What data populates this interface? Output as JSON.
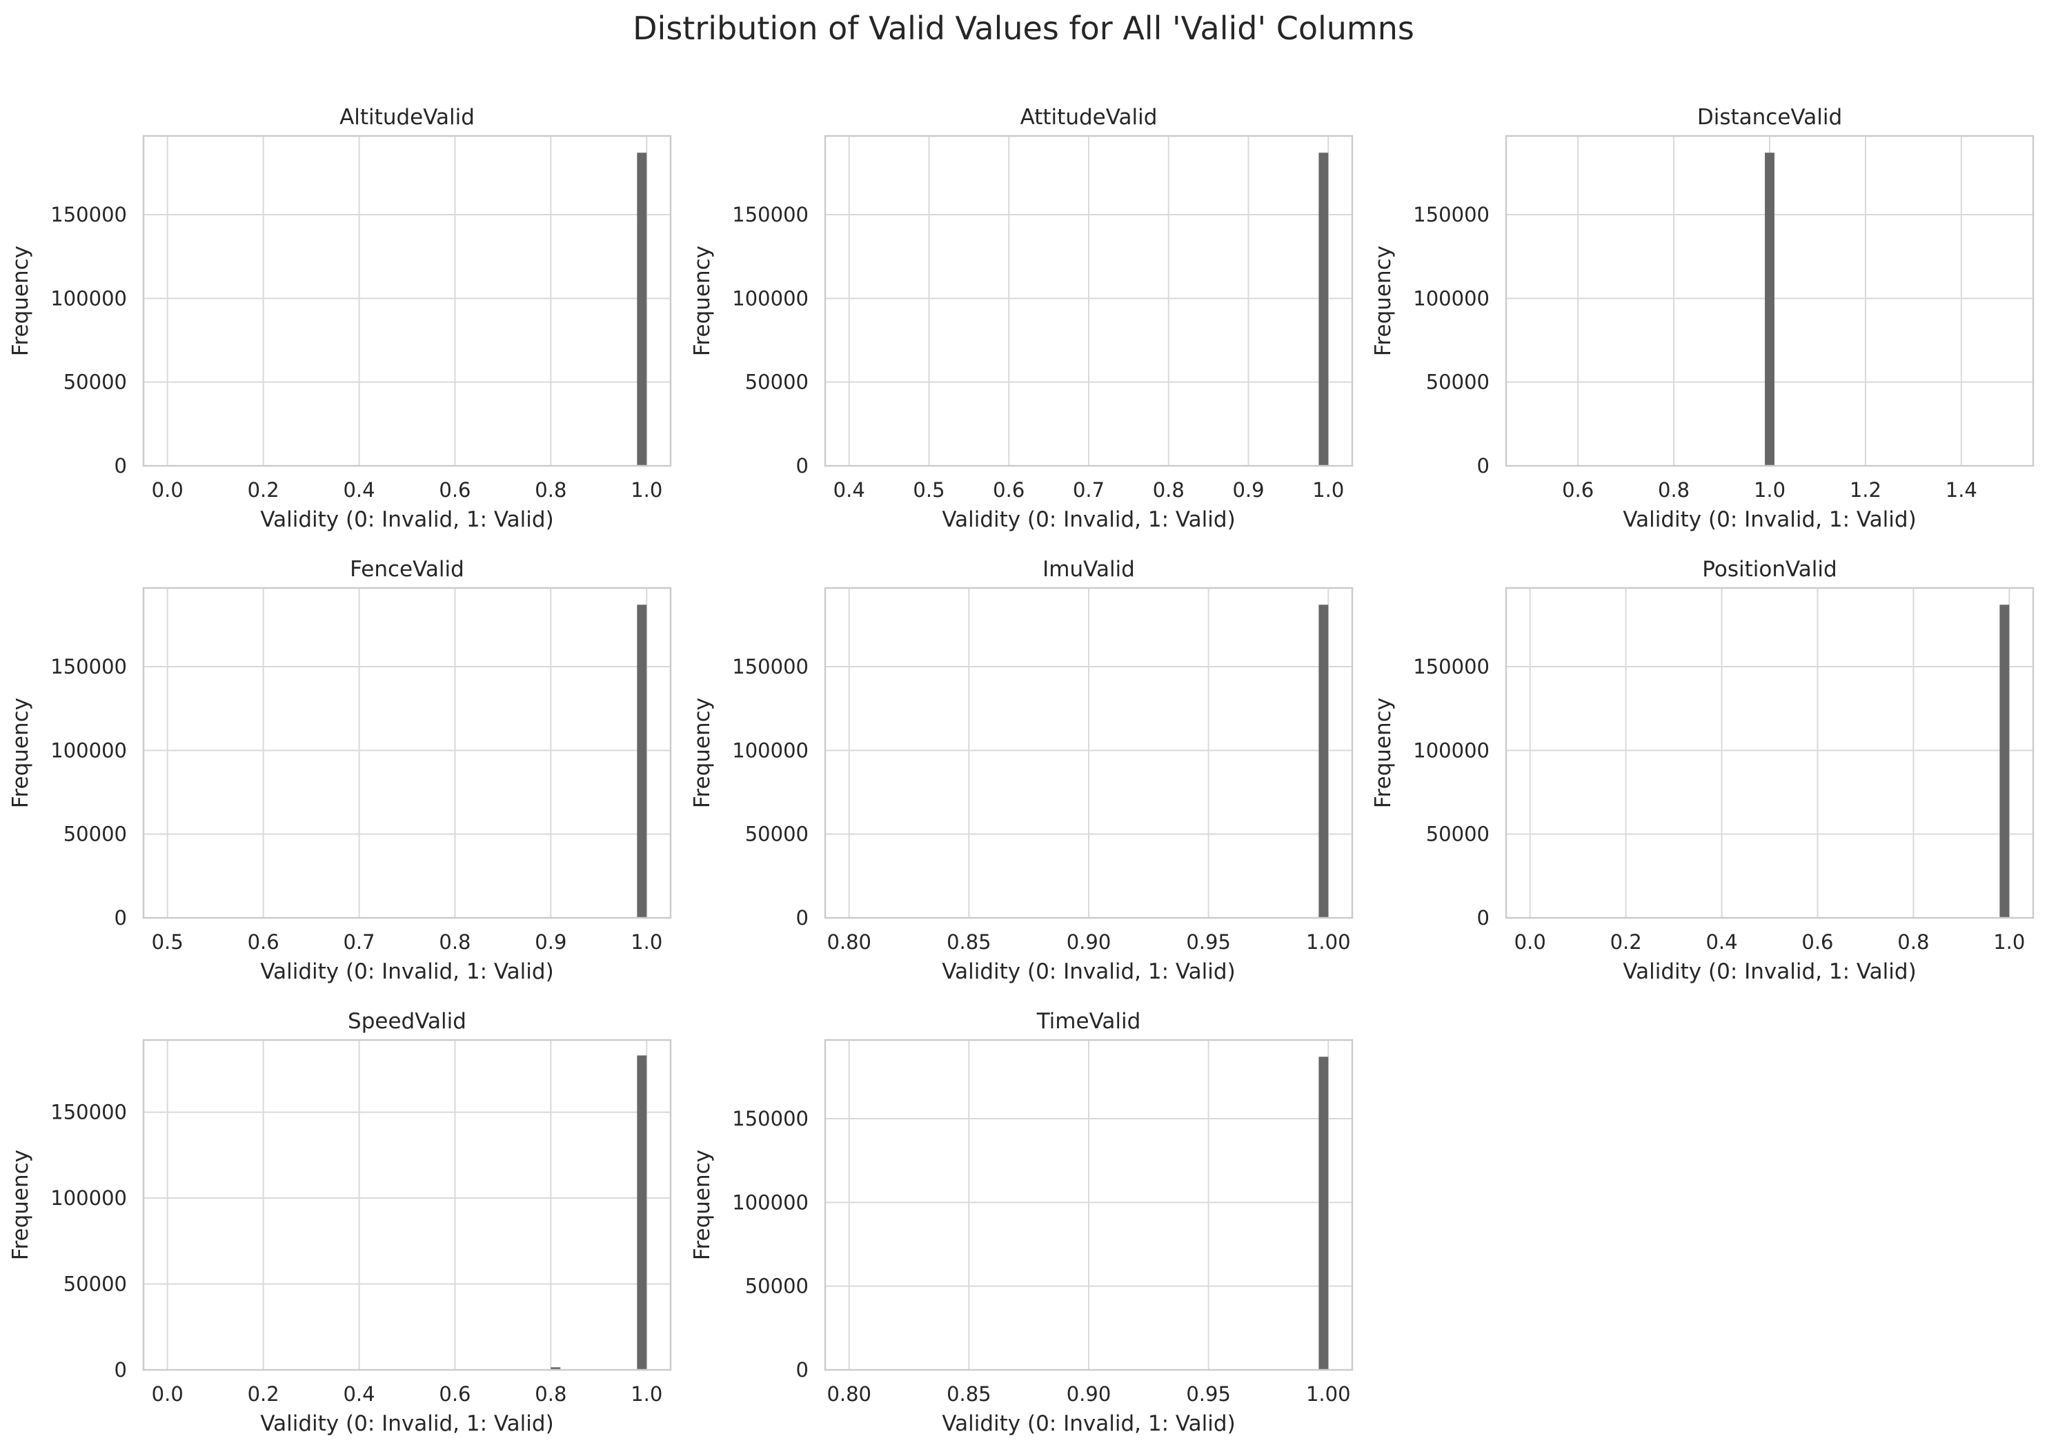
{
  "figure": {
    "title": "Distribution of Valid Values for All 'Valid' Columns"
  },
  "colors": {
    "bar": "#666666",
    "grid": "#d9d9d9",
    "spine": "#cccccc",
    "text": "#262626",
    "background": "#ffffff"
  },
  "chart_data": [
    {
      "type": "bar",
      "title": "AltitudeValid",
      "xlabel": "Validity (0: Invalid, 1: Valid)",
      "ylabel": "Frequency",
      "xlim": [
        -0.05,
        1.05
      ],
      "ylim": [
        0,
        197000
      ],
      "xticks": [
        "0.0",
        "0.2",
        "0.4",
        "0.6",
        "0.8",
        "1.0"
      ],
      "xtick_values": [
        0.0,
        0.2,
        0.4,
        0.6,
        0.8,
        1.0
      ],
      "yticks": [
        "0",
        "50000",
        "100000",
        "150000"
      ],
      "ytick_values": [
        0,
        50000,
        100000,
        150000
      ],
      "bins": [
        {
          "x0": 0.98,
          "x1": 1.0,
          "count": 187000
        }
      ],
      "grid": true
    },
    {
      "type": "bar",
      "title": "AttitudeValid",
      "xlabel": "Validity (0: Invalid, 1: Valid)",
      "ylabel": "Frequency",
      "xlim": [
        0.37,
        1.03
      ],
      "ylim": [
        0,
        197000
      ],
      "xticks": [
        "0.4",
        "0.5",
        "0.6",
        "0.7",
        "0.8",
        "0.9",
        "1.0"
      ],
      "xtick_values": [
        0.4,
        0.5,
        0.6,
        0.7,
        0.8,
        0.9,
        1.0
      ],
      "yticks": [
        "0",
        "50000",
        "100000",
        "150000"
      ],
      "ytick_values": [
        0,
        50000,
        100000,
        150000
      ],
      "bins": [
        {
          "x0": 0.988,
          "x1": 1.0,
          "count": 187000
        }
      ],
      "grid": true
    },
    {
      "type": "bar",
      "title": "DistanceValid",
      "xlabel": "Validity (0: Invalid, 1: Valid)",
      "ylabel": "Frequency",
      "xlim": [
        0.45,
        1.55
      ],
      "ylim": [
        0,
        197000
      ],
      "xticks": [
        "0.6",
        "0.8",
        "1.0",
        "1.2",
        "1.4"
      ],
      "xtick_values": [
        0.6,
        0.8,
        1.0,
        1.2,
        1.4
      ],
      "yticks": [
        "0",
        "50000",
        "100000",
        "150000"
      ],
      "ytick_values": [
        0,
        50000,
        100000,
        150000
      ],
      "bins": [
        {
          "x0": 0.99,
          "x1": 1.01,
          "count": 187000
        }
      ],
      "grid": true
    },
    {
      "type": "bar",
      "title": "FenceValid",
      "xlabel": "Validity (0: Invalid, 1: Valid)",
      "ylabel": "Frequency",
      "xlim": [
        0.475,
        1.025
      ],
      "ylim": [
        0,
        197000
      ],
      "xticks": [
        "0.5",
        "0.6",
        "0.7",
        "0.8",
        "0.9",
        "1.0"
      ],
      "xtick_values": [
        0.5,
        0.6,
        0.7,
        0.8,
        0.9,
        1.0
      ],
      "yticks": [
        "0",
        "50000",
        "100000",
        "150000"
      ],
      "ytick_values": [
        0,
        50000,
        100000,
        150000
      ],
      "bins": [
        {
          "x0": 0.99,
          "x1": 1.0,
          "count": 187000
        }
      ],
      "grid": true
    },
    {
      "type": "bar",
      "title": "ImuValid",
      "xlabel": "Validity (0: Invalid, 1: Valid)",
      "ylabel": "Frequency",
      "xlim": [
        0.79,
        1.01
      ],
      "ylim": [
        0,
        197000
      ],
      "xticks": [
        "0.80",
        "0.85",
        "0.90",
        "0.95",
        "1.00"
      ],
      "xtick_values": [
        0.8,
        0.85,
        0.9,
        0.95,
        1.0
      ],
      "yticks": [
        "0",
        "50000",
        "100000",
        "150000"
      ],
      "ytick_values": [
        0,
        50000,
        100000,
        150000
      ],
      "bins": [
        {
          "x0": 0.996,
          "x1": 1.0,
          "count": 187000
        }
      ],
      "grid": true
    },
    {
      "type": "bar",
      "title": "PositionValid",
      "xlabel": "Validity (0: Invalid, 1: Valid)",
      "ylabel": "Frequency",
      "xlim": [
        -0.05,
        1.05
      ],
      "ylim": [
        0,
        197000
      ],
      "xticks": [
        "0.0",
        "0.2",
        "0.4",
        "0.6",
        "0.8",
        "1.0"
      ],
      "xtick_values": [
        0.0,
        0.2,
        0.4,
        0.6,
        0.8,
        1.0
      ],
      "yticks": [
        "0",
        "50000",
        "100000",
        "150000"
      ],
      "ytick_values": [
        0,
        50000,
        100000,
        150000
      ],
      "bins": [
        {
          "x0": 0.98,
          "x1": 1.0,
          "count": 187000
        }
      ],
      "grid": true
    },
    {
      "type": "bar",
      "title": "SpeedValid",
      "xlabel": "Validity (0: Invalid, 1: Valid)",
      "ylabel": "Frequency",
      "xlim": [
        -0.05,
        1.05
      ],
      "ylim": [
        0,
        192000
      ],
      "xticks": [
        "0.0",
        "0.2",
        "0.4",
        "0.6",
        "0.8",
        "1.0"
      ],
      "xtick_values": [
        0.0,
        0.2,
        0.4,
        0.6,
        0.8,
        1.0
      ],
      "yticks": [
        "0",
        "50000",
        "100000",
        "150000"
      ],
      "ytick_values": [
        0,
        50000,
        100000,
        150000
      ],
      "bins": [
        {
          "x0": 0.8,
          "x1": 0.82,
          "count": 1500
        },
        {
          "x0": 0.98,
          "x1": 1.0,
          "count": 183000
        }
      ],
      "grid": true
    },
    {
      "type": "bar",
      "title": "TimeValid",
      "xlabel": "Validity (0: Invalid, 1: Valid)",
      "ylabel": "Frequency",
      "xlim": [
        0.79,
        1.01
      ],
      "ylim": [
        0,
        197000
      ],
      "xticks": [
        "0.80",
        "0.85",
        "0.90",
        "0.95",
        "1.00"
      ],
      "xtick_values": [
        0.8,
        0.85,
        0.9,
        0.95,
        1.0
      ],
      "yticks": [
        "0",
        "50000",
        "100000",
        "150000"
      ],
      "ytick_values": [
        0,
        50000,
        100000,
        150000
      ],
      "bins": [
        {
          "x0": 0.996,
          "x1": 1.0,
          "count": 187000
        }
      ],
      "grid": true
    }
  ]
}
